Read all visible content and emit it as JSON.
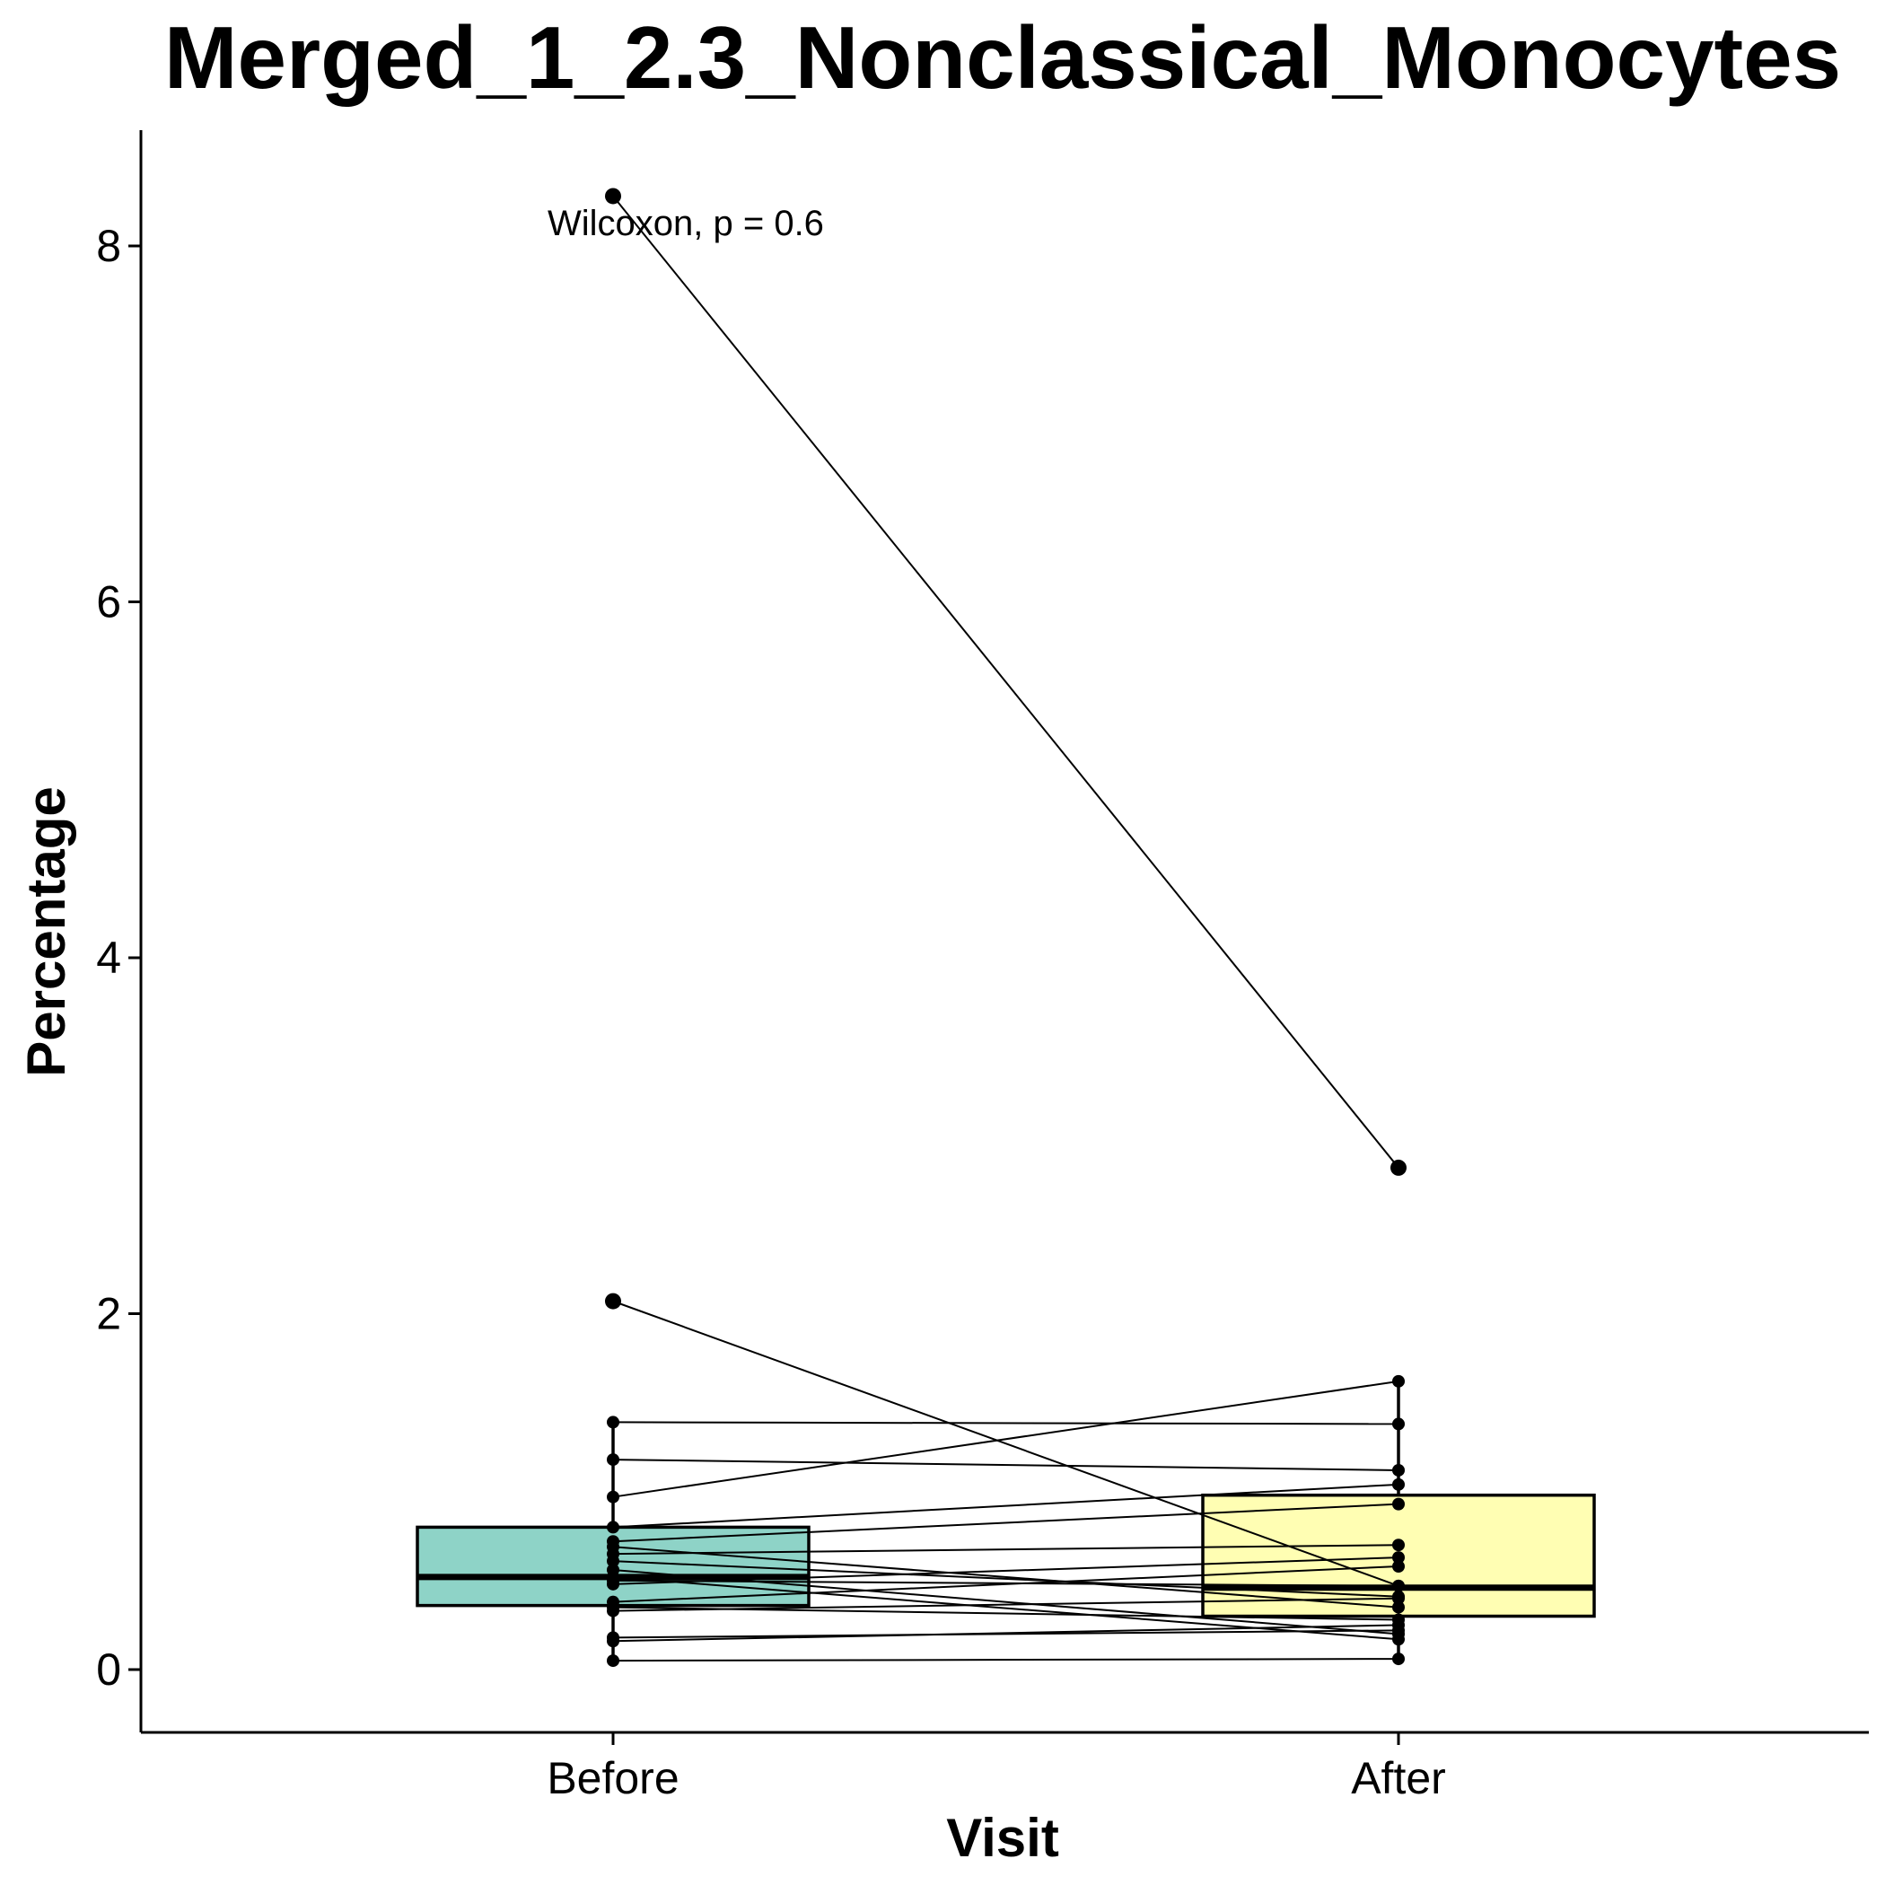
{
  "chart_data": {
    "type": "boxplot-paired",
    "title": "Merged_1_2.3_Nonclassical_Monocytes",
    "xlabel": "Visit",
    "ylabel": "Percentage",
    "categories": [
      "Before",
      "After"
    ],
    "y_ticks": [
      0,
      2,
      4,
      6,
      8
    ],
    "ylim": [
      -0.35,
      8.7
    ],
    "annotation": "Wilcoxon, p = 0.6",
    "colors": {
      "Before": "#8ED3C7",
      "After": "#FFFEB3"
    },
    "boxes": [
      {
        "category": "Before",
        "q1": 0.36,
        "median": 0.52,
        "q3": 0.8,
        "whisker_low": 0.05,
        "whisker_high": 1.39
      },
      {
        "category": "After",
        "q1": 0.3,
        "median": 0.46,
        "q3": 0.98,
        "whisker_low": 0.06,
        "whisker_high": 1.62
      }
    ],
    "pairs": [
      [
        8.28,
        2.82
      ],
      [
        2.07,
        0.47
      ],
      [
        1.39,
        1.38
      ],
      [
        1.18,
        1.12
      ],
      [
        0.97,
        1.62
      ],
      [
        0.8,
        1.04
      ],
      [
        0.72,
        0.93
      ],
      [
        0.69,
        0.35
      ],
      [
        0.65,
        0.7
      ],
      [
        0.61,
        0.41
      ],
      [
        0.56,
        0.2
      ],
      [
        0.52,
        0.17
      ],
      [
        0.5,
        0.47
      ],
      [
        0.48,
        0.63
      ],
      [
        0.38,
        0.58
      ],
      [
        0.35,
        0.28
      ],
      [
        0.33,
        0.4
      ],
      [
        0.18,
        0.22
      ],
      [
        0.16,
        0.25
      ],
      [
        0.05,
        0.06
      ]
    ]
  }
}
